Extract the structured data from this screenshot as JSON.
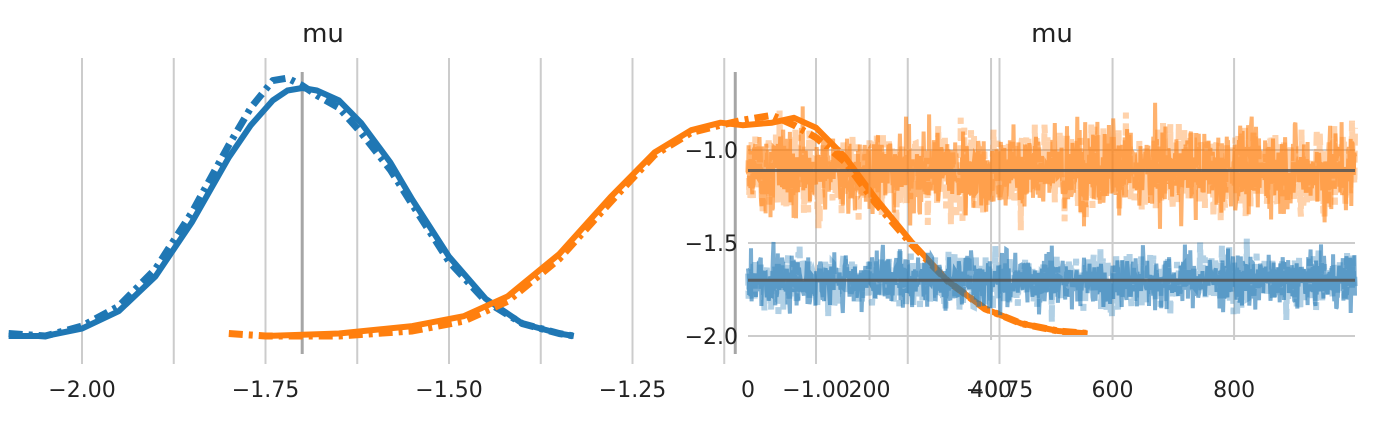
{
  "colors": {
    "chain_a": "#1f77b4",
    "chain_b": "#ff7f0e",
    "grid": "#cccccc",
    "ref_line": "#a6a6a6",
    "mean_line": "#555555"
  },
  "chart_data": [
    {
      "type": "line",
      "title": "mu",
      "xlabel": "",
      "ylabel": "",
      "grid": "vertical",
      "xlim": [
        -2.1,
        -0.62
      ],
      "xticks": [
        -2.0,
        -1.75,
        -1.5,
        -1.25,
        -1.0,
        -0.75
      ],
      "xtick_labels": [
        "−2.00",
        "−1.75",
        "−1.50",
        "−1.25",
        "−1.00",
        "−0.75"
      ],
      "vertical_reference_lines": [
        -1.7,
        -1.11
      ],
      "series": [
        {
          "color": "#1f77b4",
          "style": "solid",
          "x": [
            -2.1,
            -2.05,
            -2.0,
            -1.95,
            -1.9,
            -1.85,
            -1.8,
            -1.77,
            -1.74,
            -1.72,
            -1.7,
            -1.68,
            -1.65,
            -1.62,
            -1.58,
            -1.55,
            -1.5,
            -1.45,
            -1.4,
            -1.35,
            -1.33
          ],
          "y": [
            0.0,
            0.0,
            0.03,
            0.1,
            0.24,
            0.46,
            0.72,
            0.85,
            0.95,
            0.99,
            1.0,
            0.99,
            0.95,
            0.86,
            0.7,
            0.55,
            0.32,
            0.15,
            0.05,
            0.01,
            0.0
          ]
        },
        {
          "color": "#1f77b4",
          "style": "dashed",
          "x": [
            -2.1,
            -2.05,
            -2.0,
            -1.95,
            -1.9,
            -1.85,
            -1.8,
            -1.77,
            -1.74,
            -1.72,
            -1.7,
            -1.68,
            -1.65,
            -1.62,
            -1.58,
            -1.55,
            -1.5,
            -1.45,
            -1.4,
            -1.35,
            -1.33
          ],
          "y": [
            0.01,
            0.0,
            0.04,
            0.12,
            0.27,
            0.5,
            0.77,
            0.92,
            1.03,
            1.04,
            1.01,
            0.97,
            0.92,
            0.82,
            0.67,
            0.53,
            0.3,
            0.14,
            0.05,
            0.01,
            0.0
          ]
        },
        {
          "color": "#ff7f0e",
          "style": "solid",
          "x": [
            -1.75,
            -1.65,
            -1.55,
            -1.48,
            -1.42,
            -1.35,
            -1.28,
            -1.22,
            -1.17,
            -1.13,
            -1.1,
            -1.06,
            -1.03,
            -1.0,
            -0.96,
            -0.92,
            -0.87,
            -0.82,
            -0.77,
            -0.72,
            -0.67,
            -0.63
          ],
          "y": [
            0.0,
            0.01,
            0.04,
            0.08,
            0.16,
            0.33,
            0.56,
            0.74,
            0.83,
            0.86,
            0.85,
            0.86,
            0.88,
            0.84,
            0.72,
            0.56,
            0.38,
            0.22,
            0.11,
            0.05,
            0.02,
            0.01
          ]
        },
        {
          "color": "#ff7f0e",
          "style": "dashed",
          "x": [
            -1.8,
            -1.75,
            -1.65,
            -1.55,
            -1.48,
            -1.42,
            -1.35,
            -1.28,
            -1.22,
            -1.17,
            -1.13,
            -1.1,
            -1.06,
            -1.03,
            -1.0,
            -0.96,
            -0.92,
            -0.87,
            -0.82,
            -0.77,
            -0.72,
            -0.67,
            -0.63
          ],
          "y": [
            0.01,
            0.0,
            0.0,
            0.02,
            0.06,
            0.14,
            0.31,
            0.54,
            0.73,
            0.82,
            0.85,
            0.87,
            0.89,
            0.85,
            0.8,
            0.7,
            0.54,
            0.37,
            0.22,
            0.11,
            0.05,
            0.02,
            0.01
          ]
        }
      ]
    },
    {
      "type": "line",
      "title": "mu",
      "xlabel": "",
      "ylabel": "",
      "grid": "both",
      "xlim": [
        0,
        999
      ],
      "ylim": [
        -2.15,
        -0.55
      ],
      "xticks": [
        0,
        200,
        400,
        600,
        800
      ],
      "xtick_labels": [
        "0",
        "200",
        "400",
        "600",
        "800"
      ],
      "yticks": [
        -1.0,
        -1.5,
        -2.0
      ],
      "ytick_labels": [
        "−1.0",
        "−1.5",
        "−2.0"
      ],
      "horizontal_reference_lines": [
        -1.11,
        -1.7
      ],
      "series": [
        {
          "color": "#1f77b4",
          "draws": 1000,
          "center": -1.7,
          "spread": 0.1
        },
        {
          "color": "#ff7f0e",
          "draws": 1000,
          "center": -1.11,
          "spread": 0.16
        }
      ]
    }
  ]
}
